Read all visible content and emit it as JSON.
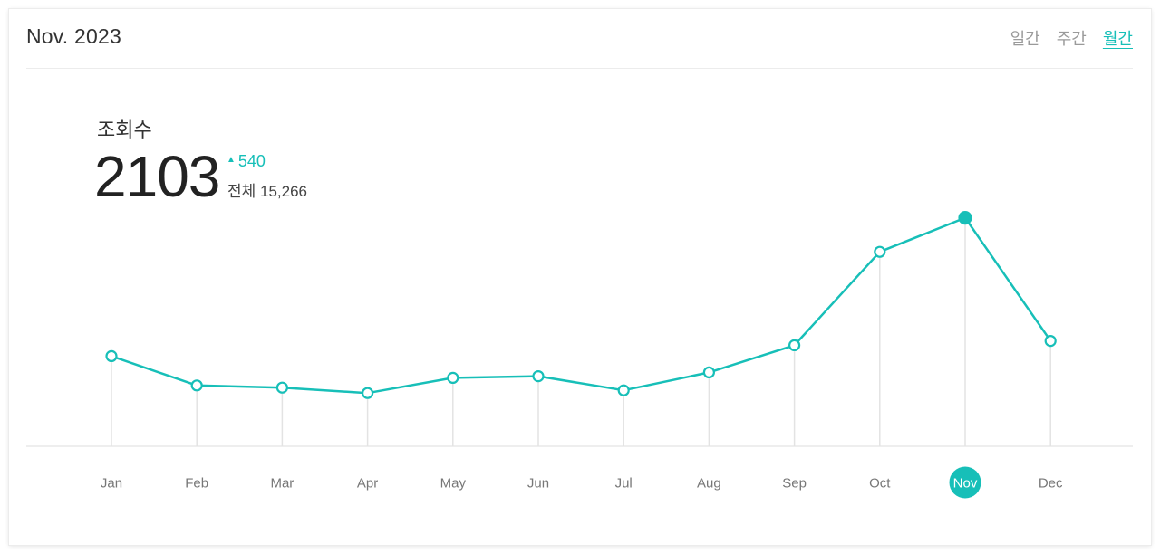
{
  "header": {
    "period": "Nov. 2023",
    "tabs": [
      {
        "label": "일간",
        "active": false
      },
      {
        "label": "주간",
        "active": false
      },
      {
        "label": "월간",
        "active": true
      }
    ]
  },
  "metric": {
    "label": "조회수",
    "value": "2103",
    "delta": "540",
    "total": "전체 15,266"
  },
  "colors": {
    "accent": "#17bfb8",
    "axis": "#e3e3e3",
    "text": "#333333"
  },
  "chart_data": {
    "type": "line",
    "categories": [
      "Jan",
      "Feb",
      "Mar",
      "Apr",
      "May",
      "Jun",
      "Jul",
      "Aug",
      "Sep",
      "Oct",
      "Nov",
      "Dec"
    ],
    "series": [
      {
        "values": [
          830,
          560,
          540,
          490,
          630,
          645,
          515,
          680,
          930,
          1790,
          2103,
          970
        ]
      }
    ],
    "highlight_index": 10,
    "ylim": [
      0,
      3000
    ],
    "grid": false,
    "legend": "none"
  }
}
